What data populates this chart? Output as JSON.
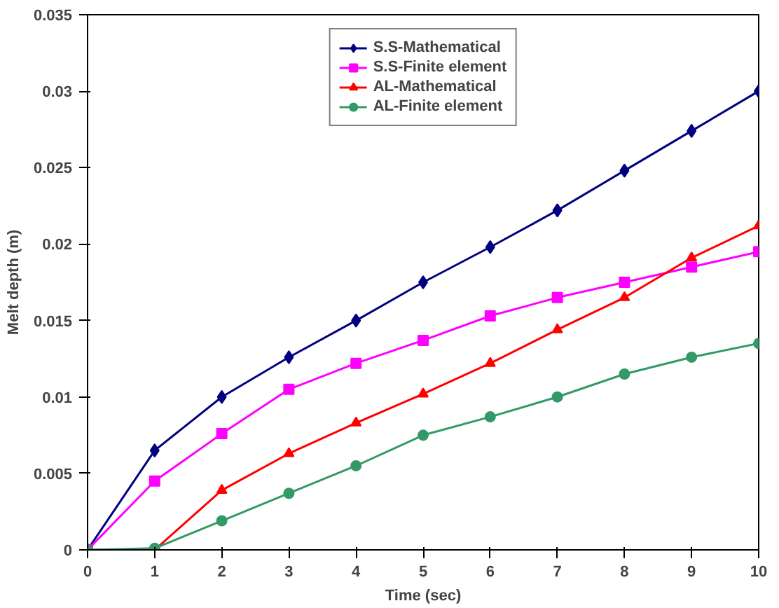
{
  "chart_data": {
    "type": "line",
    "xlabel": "Time (sec)",
    "ylabel": "Melt depth (m)",
    "x": [
      0,
      1,
      2,
      3,
      4,
      5,
      6,
      7,
      8,
      9,
      10
    ],
    "series": [
      {
        "name": "S.S-Mathematical",
        "color": "#000080",
        "marker": "diamond",
        "values": [
          0,
          0.0065,
          0.01,
          0.0126,
          0.015,
          0.0175,
          0.0198,
          0.0222,
          0.0248,
          0.0274,
          0.03
        ]
      },
      {
        "name": "S.S-Finite element",
        "color": "#ff00ff",
        "marker": "square",
        "values": [
          0,
          0.0045,
          0.0076,
          0.0105,
          0.0122,
          0.0137,
          0.0153,
          0.0165,
          0.0175,
          0.0185,
          0.0195
        ]
      },
      {
        "name": "AL-Mathematical",
        "color": "#ff0000",
        "marker": "triangle",
        "values": [
          0,
          0,
          0.0039,
          0.0063,
          0.0083,
          0.0102,
          0.0122,
          0.0144,
          0.0165,
          0.0191,
          0.0212
        ]
      },
      {
        "name": "AL-Finite element",
        "color": "#339966",
        "marker": "circle",
        "values": [
          0,
          0.0001,
          0.0019,
          0.0037,
          0.0055,
          0.0075,
          0.0087,
          0.01,
          0.0115,
          0.0126,
          0.0135
        ]
      }
    ],
    "xlim": [
      0,
      10
    ],
    "xticks": [
      0,
      1,
      2,
      3,
      4,
      5,
      6,
      7,
      8,
      9,
      10
    ],
    "ylim": [
      0,
      0.035
    ],
    "yticks": [
      0,
      0.005,
      0.01,
      0.015,
      0.02,
      0.025,
      0.03,
      0.035
    ],
    "grid": false,
    "legend": "top"
  }
}
